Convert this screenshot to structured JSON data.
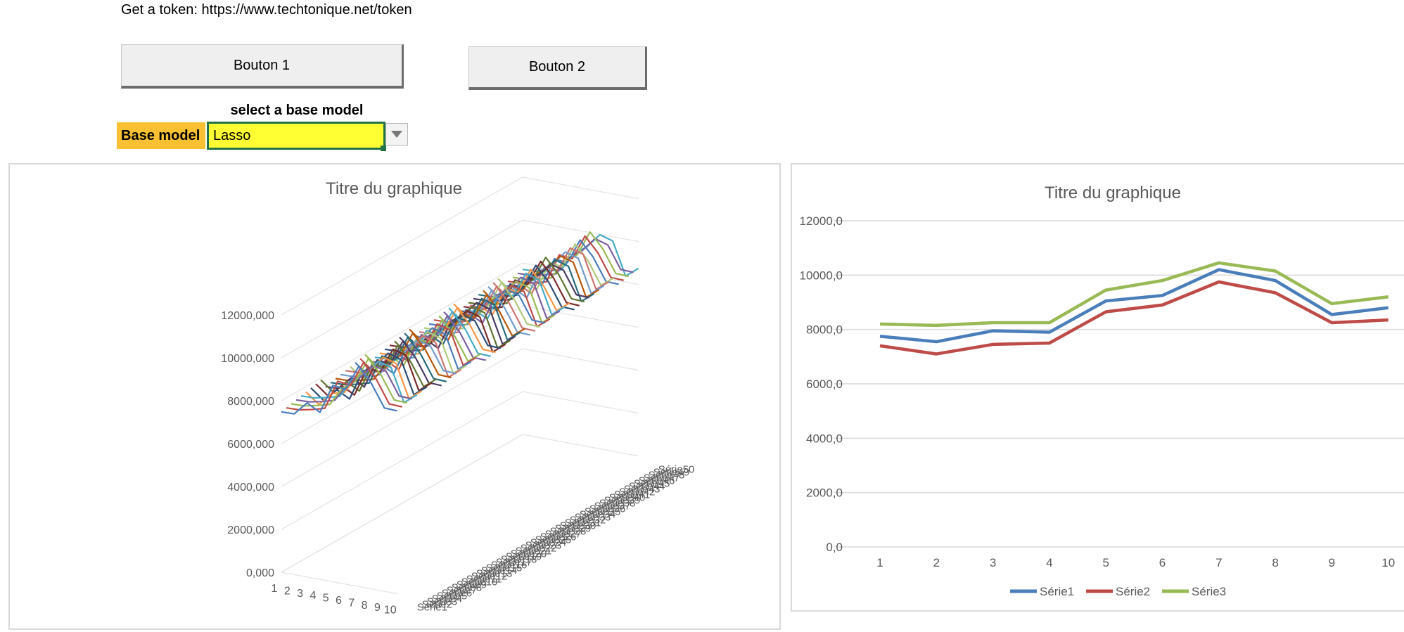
{
  "header": {
    "token_text": "Get a token: https://www.techtonique.net/token"
  },
  "buttons": {
    "button1_label": "Bouton 1",
    "button2_label": "Bouton 2"
  },
  "model_select": {
    "caption": "select a base model",
    "label": "Base model",
    "value": "Lasso"
  },
  "colors": {
    "label_fill": "#f9c032",
    "field_fill": "#ffff33",
    "selection_border": "#217346"
  },
  "chart_data": [
    {
      "type": "line",
      "subtype": "3d-line",
      "title": "Titre du graphique",
      "categories": [
        "1",
        "2",
        "3",
        "4",
        "5",
        "6",
        "7",
        "8",
        "9",
        "10"
      ],
      "y_tick_labels": [
        "0,000",
        "2000,000",
        "4000,000",
        "6000,000",
        "8000,000",
        "10000,000",
        "12000,000"
      ],
      "ylim": [
        0,
        12000
      ],
      "depth_labels": [
        "Série1",
        "Série2",
        "Série3",
        "Série4",
        "Série5",
        "Série6",
        "Série7",
        "Série8",
        "Série9",
        "Série10",
        "Série11",
        "Série12",
        "Série13",
        "Série14",
        "Série15",
        "Série16",
        "Série17",
        "Série18",
        "Série19",
        "Série20",
        "Série21",
        "Série22",
        "Série23",
        "Série24",
        "Série25",
        "Série26",
        "Série27",
        "Série28",
        "Série29",
        "Série30",
        "Série31",
        "Série32",
        "Série33",
        "Série34",
        "Série35",
        "Série36",
        "Série37",
        "Série38",
        "Série39",
        "Série40",
        "Série41",
        "Série42",
        "Série43",
        "Série44",
        "Série45",
        "Série46",
        "Série47",
        "Série48",
        "Série49",
        "Série50"
      ],
      "base_values": [
        7700,
        7500,
        7900,
        7850,
        9000,
        9200,
        10150,
        9750,
        8500,
        8750
      ],
      "series_count": 50,
      "grid": true
    },
    {
      "type": "line",
      "title": "Titre du graphique",
      "categories": [
        "1",
        "2",
        "3",
        "4",
        "5",
        "6",
        "7",
        "8",
        "9",
        "10"
      ],
      "y_tick_labels": [
        "0,0",
        "2000,0",
        "4000,0",
        "6000,0",
        "8000,0",
        "10000,0",
        "12000,0"
      ],
      "ylim": [
        0,
        12000
      ],
      "grid": true,
      "legend_position": "bottom",
      "series": [
        {
          "name": "Série1",
          "color": "#4a7ebb",
          "values": [
            7750,
            7550,
            7950,
            7900,
            9050,
            9250,
            10200,
            9800,
            8550,
            8800
          ]
        },
        {
          "name": "Série2",
          "color": "#be4b48",
          "values": [
            7400,
            7100,
            7450,
            7500,
            8650,
            8900,
            9750,
            9350,
            8250,
            8350
          ]
        },
        {
          "name": "Série3",
          "color": "#98b954",
          "values": [
            8200,
            8150,
            8250,
            8250,
            9450,
            9800,
            10450,
            10150,
            8950,
            9200
          ]
        }
      ]
    }
  ]
}
